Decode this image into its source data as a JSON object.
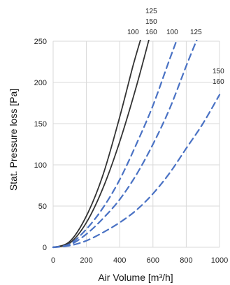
{
  "chart_data": {
    "type": "line",
    "xlabel": "Air Volume [m³/h]",
    "ylabel": "Stat. Pressure loss [Pa]",
    "xlim": [
      0,
      1000
    ],
    "ylim": [
      0,
      250
    ],
    "x_ticks": [
      "0",
      "200",
      "400",
      "600",
      "800",
      "1000"
    ],
    "y_ticks": [
      "0",
      "50",
      "100",
      "150",
      "200",
      "250"
    ],
    "x_tick_values": [
      0,
      200,
      400,
      600,
      800,
      1000
    ],
    "y_tick_values": [
      0,
      50,
      100,
      150,
      200,
      250
    ],
    "grid": true,
    "series": [
      {
        "group": "solid",
        "color": "#333333",
        "dashed": false,
        "x": [
          0,
          100,
          200,
          300,
          400,
          480,
          530
        ],
        "y": [
          0,
          7,
          38,
          88,
          158,
          220,
          255
        ]
      },
      {
        "group": "solid",
        "color": "#333333",
        "dashed": false,
        "x": [
          0,
          100,
          200,
          300,
          400,
          500,
          580
        ],
        "y": [
          0,
          5,
          30,
          72,
          128,
          195,
          255
        ]
      },
      {
        "group": "dashed",
        "color": "#4a72c4",
        "dashed": true,
        "x": [
          0,
          100,
          200,
          300,
          400,
          500,
          600,
          700,
          750
        ],
        "y": [
          0,
          4,
          22,
          48,
          82,
          125,
          172,
          228,
          255
        ]
      },
      {
        "group": "dashed",
        "color": "#4a72c4",
        "dashed": true,
        "x": [
          0,
          100,
          200,
          300,
          400,
          500,
          600,
          700,
          800,
          870
        ],
        "y": [
          0,
          3,
          16,
          35,
          58,
          88,
          125,
          168,
          220,
          255
        ]
      },
      {
        "group": "dashed",
        "color": "#4a72c4",
        "dashed": true,
        "x": [
          0,
          100,
          200,
          300,
          400,
          500,
          600,
          700,
          800,
          900,
          1000
        ],
        "y": [
          0,
          2,
          8,
          18,
          30,
          45,
          65,
          90,
          120,
          150,
          185
        ]
      }
    ],
    "curve_labels": [
      "100",
      "125",
      "150",
      "160",
      "100",
      "125",
      "150",
      "160"
    ]
  }
}
